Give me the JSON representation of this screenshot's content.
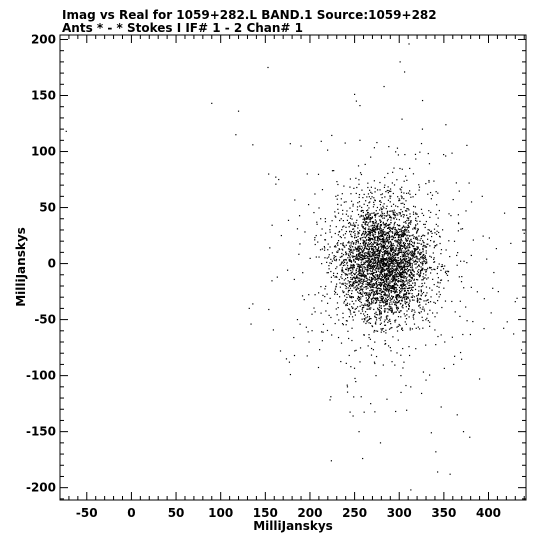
{
  "header": {
    "line1": "Imag vs Real for 1059+282.L BAND.1   Source:1059+282",
    "line2": "Ants * - *     Stokes I  IF# 1 - 2  Chan# 1"
  },
  "chart_data": {
    "type": "scatter",
    "title": "Imag vs Real for 1059+282.L BAND.1   Source:1059+282",
    "subtitle": "Ants * - *     Stokes I  IF# 1 - 2  Chan# 1",
    "xlabel": "MilliJanskys",
    "ylabel": "MilliJanskys",
    "xlim": [
      -80,
      442
    ],
    "ylim": [
      -211,
      204
    ],
    "x_ticks": [
      -50,
      0,
      50,
      100,
      150,
      200,
      250,
      300,
      350,
      400
    ],
    "y_ticks": [
      -200,
      -150,
      -100,
      -50,
      0,
      50,
      100,
      150,
      200
    ],
    "grid": false,
    "cluster": {
      "center_x": 283,
      "center_y": 0,
      "std_x": 25,
      "std_y": 25,
      "n_points": 3800
    },
    "points": [
      [
        -73,
        118
      ],
      [
        90,
        143
      ],
      [
        120,
        136
      ],
      [
        117,
        115
      ],
      [
        153,
        175
      ],
      [
        136,
        106
      ],
      [
        250,
        151
      ],
      [
        252,
        145
      ],
      [
        256,
        141
      ],
      [
        283,
        158
      ],
      [
        301,
        180
      ],
      [
        306,
        171
      ],
      [
        311,
        196
      ],
      [
        275,
        108
      ],
      [
        256,
        110
      ],
      [
        268,
        95
      ],
      [
        298,
        103
      ],
      [
        326,
        120
      ],
      [
        178,
        107
      ],
      [
        165,
        75
      ],
      [
        197,
        80
      ],
      [
        214,
        66
      ],
      [
        229,
        60
      ],
      [
        232,
        45
      ],
      [
        212,
        40
      ],
      [
        207,
        25
      ],
      [
        186,
        31
      ],
      [
        155,
        14
      ],
      [
        440,
        27
      ],
      [
        381,
        55
      ],
      [
        364,
        72
      ],
      [
        352,
        96
      ],
      [
        393,
        60
      ],
      [
        418,
        45
      ],
      [
        425,
        18
      ],
      [
        432,
        -31
      ],
      [
        430,
        -34
      ],
      [
        421,
        -52
      ],
      [
        437,
        -77
      ],
      [
        395,
        -58
      ],
      [
        403,
        -44
      ],
      [
        376,
        -51
      ],
      [
        390,
        -103
      ],
      [
        361,
        -90
      ],
      [
        351,
        -70
      ],
      [
        330,
        -104
      ],
      [
        302,
        -115
      ],
      [
        274,
        -100
      ],
      [
        244,
        -82
      ],
      [
        232,
        -66
      ],
      [
        199,
        -70
      ],
      [
        177,
        -88
      ],
      [
        167,
        -78
      ],
      [
        136,
        -36
      ],
      [
        132,
        -40
      ],
      [
        134,
        -54
      ],
      [
        186,
        -50
      ],
      [
        242,
        -110
      ],
      [
        249,
        -119
      ],
      [
        268,
        -125
      ],
      [
        296,
        -132
      ],
      [
        336,
        -151
      ],
      [
        341,
        -168
      ],
      [
        343,
        -186
      ],
      [
        357,
        -188
      ],
      [
        365,
        -135
      ],
      [
        372,
        -150
      ],
      [
        379,
        -155
      ],
      [
        255,
        -150
      ],
      [
        259,
        -174
      ],
      [
        279,
        -160
      ],
      [
        313,
        -202
      ],
      [
        224,
        -176
      ],
      [
        347,
        -128
      ],
      [
        411,
        -25
      ],
      [
        406,
        -8
      ],
      [
        398,
        4
      ],
      [
        383,
        21
      ]
    ]
  }
}
